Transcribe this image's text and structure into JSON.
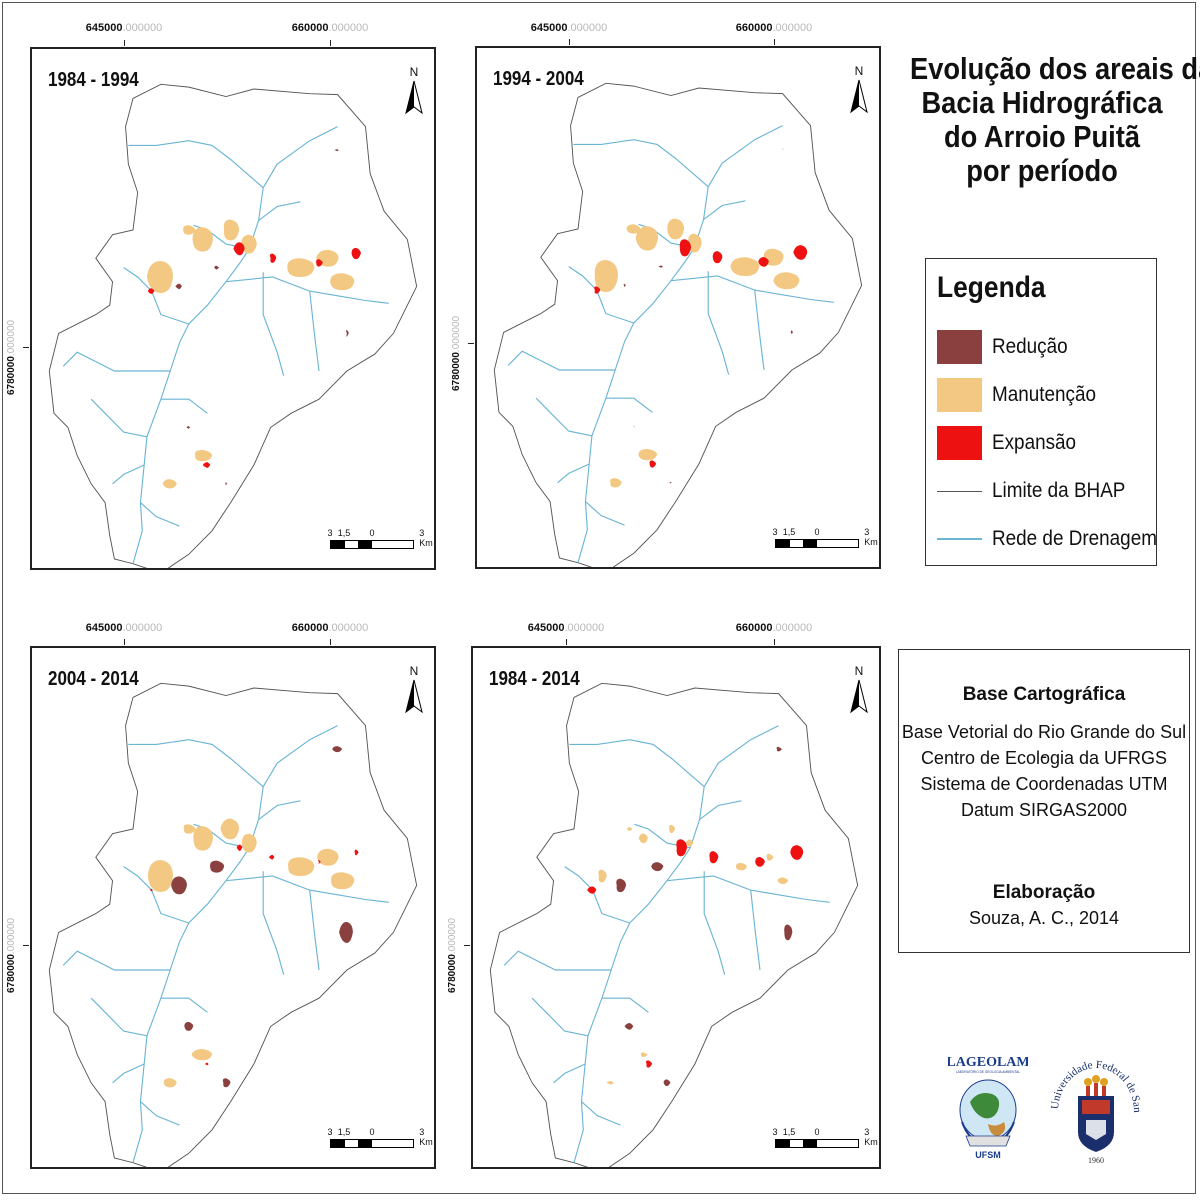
{
  "title": {
    "lines": [
      "Evolução dos areais da",
      "Bacia Hidrográfica",
      "do Arroio Puitã",
      "por período"
    ]
  },
  "legend": {
    "title": "Legenda",
    "items": [
      {
        "label": "Redução",
        "color": "#8b4040",
        "kind": "fill"
      },
      {
        "label": "Manutenção",
        "color": "#f2c882",
        "kind": "fill"
      },
      {
        "label": "Expansão",
        "color": "#ee1111",
        "kind": "fill"
      },
      {
        "label": "Limite da BHAP",
        "color": "#555555",
        "kind": "line"
      },
      {
        "label": "Rede de Drenagem",
        "color": "#6ab4d4",
        "kind": "line"
      }
    ]
  },
  "base_cartografica": {
    "heading": "Base Cartográfica",
    "lines": [
      "Base Vetorial do Rio Grande do Sul -",
      "Centro de Ecologia da UFRGS",
      "Sistema de Coordenadas UTM",
      "Datum SIRGAS2000"
    ],
    "elaboracao_heading": "Elaboração",
    "elaboracao_text": "Souza, A. C., 2014"
  },
  "coords": {
    "x1_main": "645000",
    "x1_faint": ".000000",
    "x2_main": "660000",
    "x2_faint": ".000000",
    "y_main": "6780000",
    "y_faint": ".000000"
  },
  "north_label": "N",
  "scale": {
    "labels": [
      "3",
      "1,5",
      "0",
      "3 Km"
    ]
  },
  "maps": [
    {
      "period": "1984 - 1994"
    },
    {
      "period": "1994 - 2004"
    },
    {
      "period": "2004 - 2014"
    },
    {
      "period": "1984 - 2014"
    }
  ],
  "logos": {
    "lageolam_text": "LAGEOLAM",
    "lageolam_sub": "LABORATÓRIO DE GEOLOGIA AMBIENTAL",
    "lageolam_bottom": "UFSM",
    "ufsm_ring_text": "Universidade Federal de Santa Maria",
    "ufsm_year": "1960"
  },
  "colors": {
    "reducao": "#8b4040",
    "manutencao": "#f2c882",
    "expansao": "#ee1111",
    "drenagem": "#6ab4d4",
    "limite": "#555555"
  }
}
